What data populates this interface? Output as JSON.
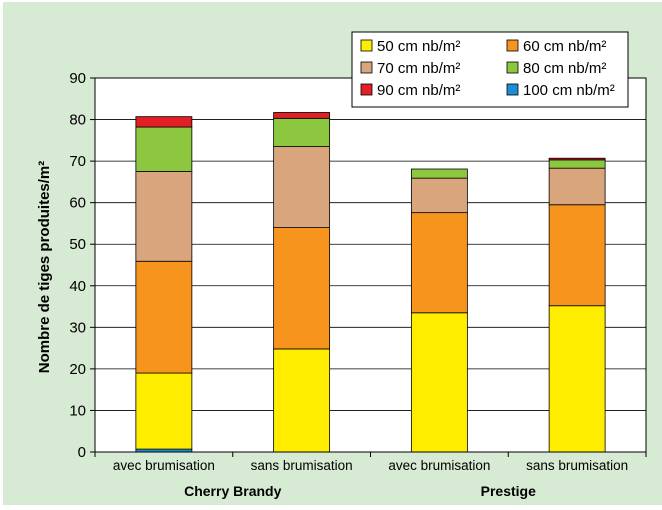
{
  "chart_data": {
    "type": "bar",
    "stacked": true,
    "ylabel": "Nombre de tiges produites/m²",
    "ylim": [
      0,
      90
    ],
    "yticks": [
      0,
      10,
      20,
      30,
      40,
      50,
      60,
      70,
      80,
      90
    ],
    "grid": true,
    "legend_position": "top-right",
    "groups": [
      "Cherry Brandy",
      "Prestige"
    ],
    "categories": [
      "avec brumisation",
      "sans brumisation",
      "avec brumisation",
      "sans brumisation"
    ],
    "series": [
      {
        "name": "100 cm nb/m²",
        "color": "#1a8fd6",
        "values": [
          0.7,
          0,
          0,
          0
        ]
      },
      {
        "name": "50 cm nb/m²",
        "color": "#ffed00",
        "values": [
          18.3,
          24.8,
          33.5,
          35.2
        ]
      },
      {
        "name": "60 cm nb/m²",
        "color": "#f7941d",
        "values": [
          26.9,
          29.2,
          24.1,
          24.3
        ]
      },
      {
        "name": "70 cm nb/m²",
        "color": "#d9a57c",
        "values": [
          21.6,
          19.5,
          8.3,
          8.8
        ]
      },
      {
        "name": "80 cm nb/m²",
        "color": "#8dc63f",
        "values": [
          10.7,
          6.8,
          2.2,
          2.0
        ]
      },
      {
        "name": "90 cm nb/m²",
        "color": "#e31e24",
        "values": [
          2.5,
          1.4,
          0,
          0.4
        ]
      }
    ],
    "legend_order": [
      "50 cm nb/m²",
      "60 cm nb/m²",
      "70 cm nb/m²",
      "80 cm nb/m²",
      "90 cm nb/m²",
      "100 cm nb/m²"
    ]
  }
}
